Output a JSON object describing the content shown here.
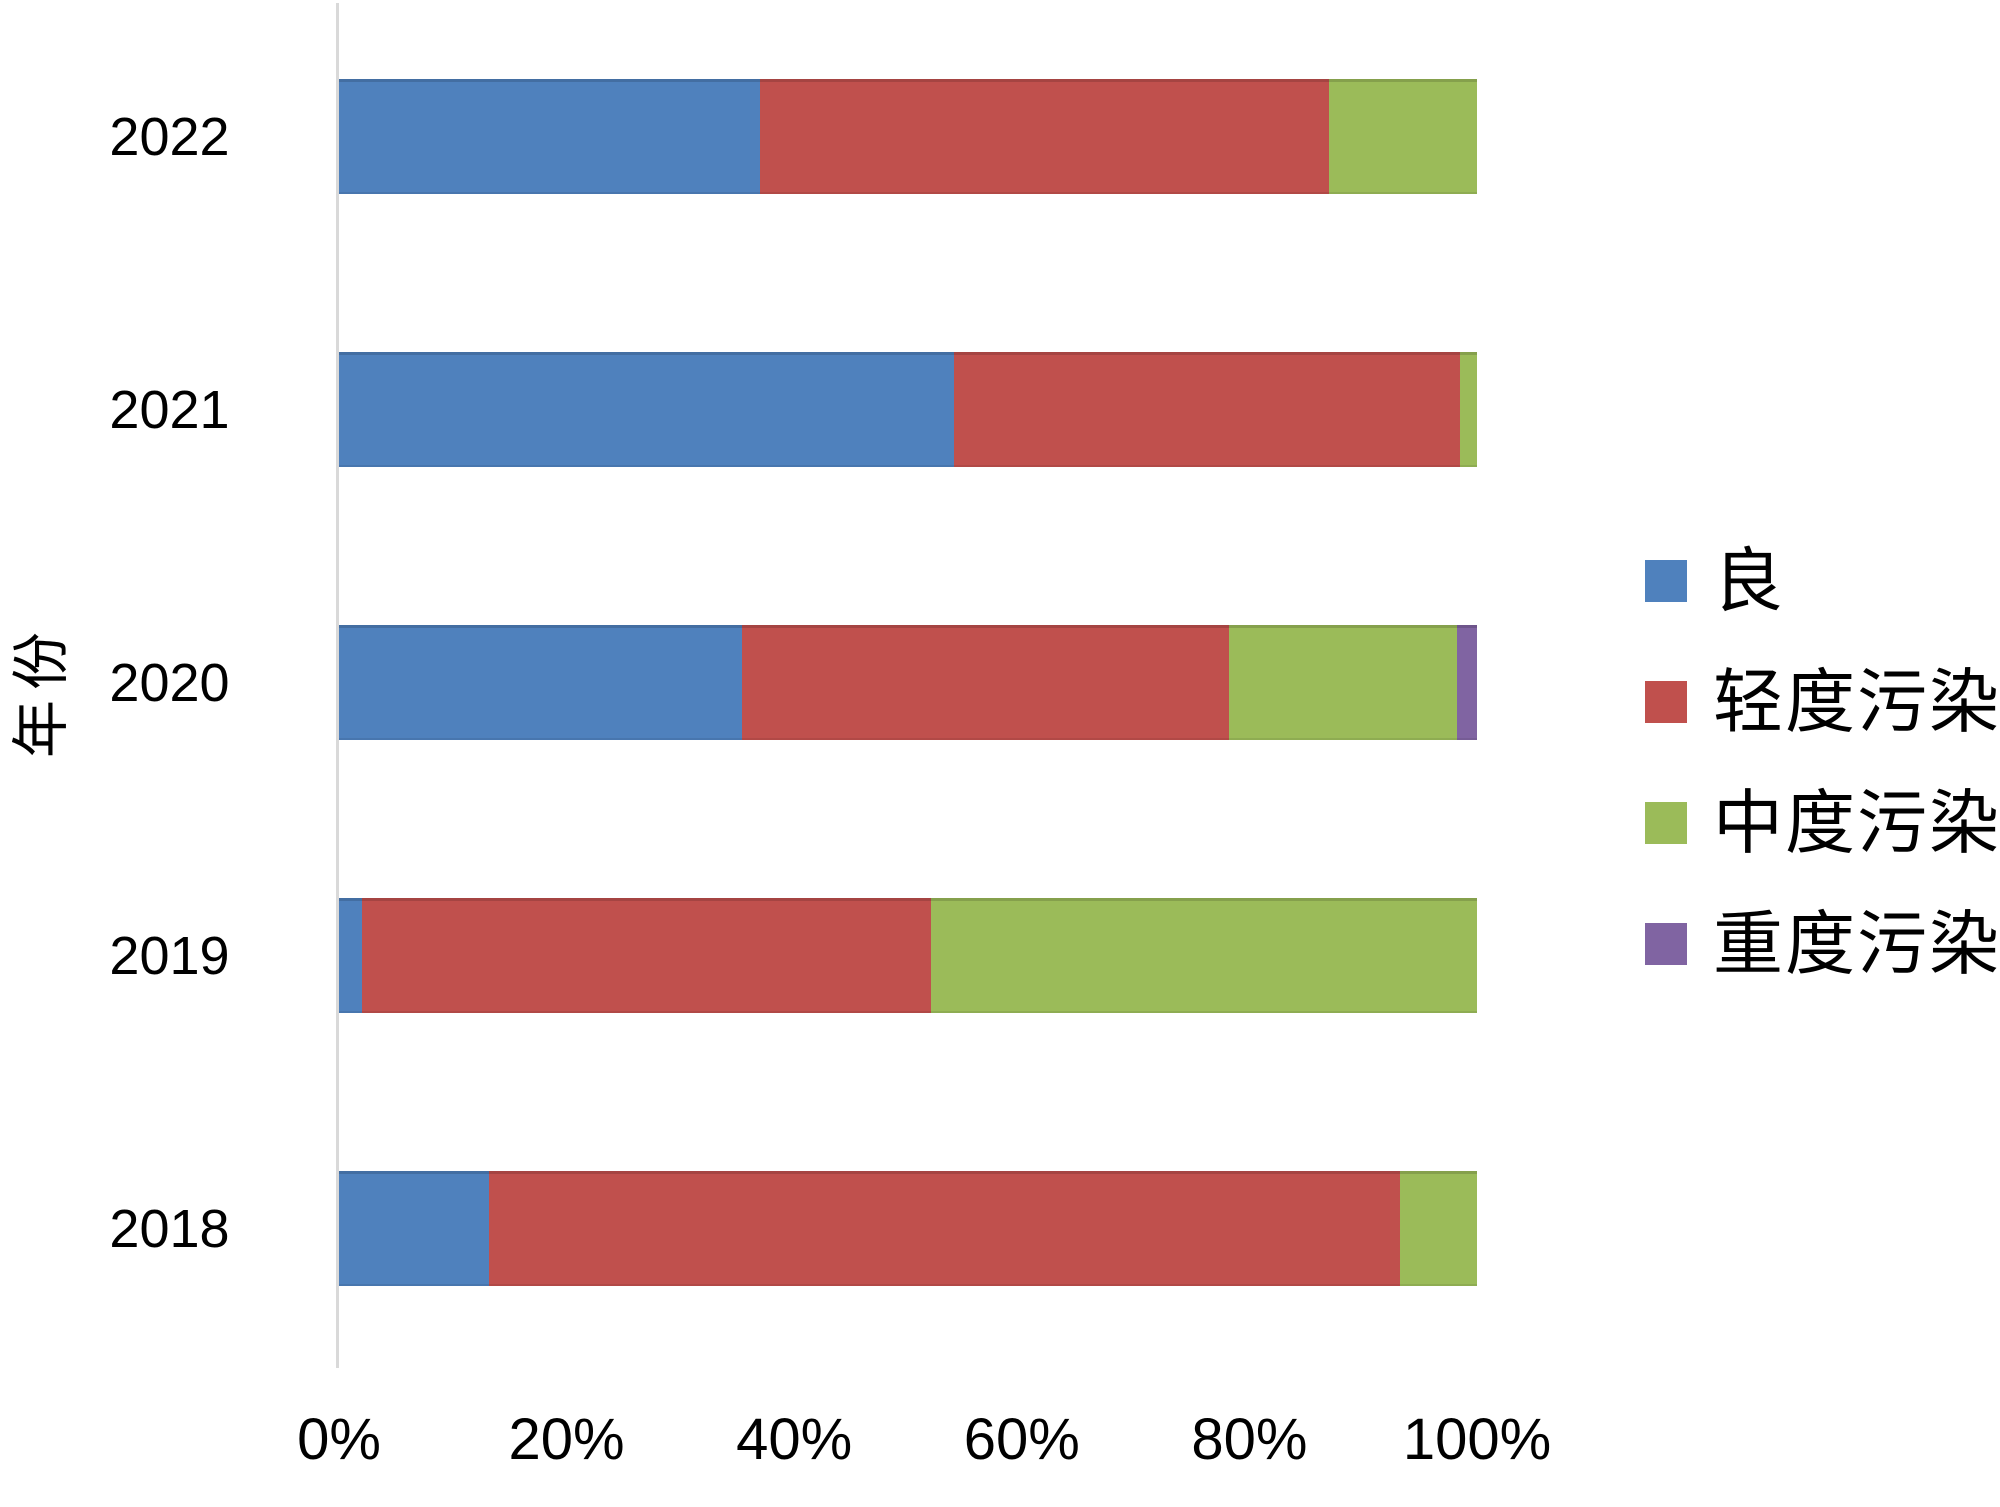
{
  "chart_data": {
    "type": "bar",
    "subtype": "horizontal-stacked-100-percent",
    "title": "",
    "xlabel": "",
    "ylabel": "年份",
    "xlim": [
      0,
      100
    ],
    "x_tick_labels": [
      "0%",
      "20%",
      "40%",
      "60%",
      "80%",
      "100%"
    ],
    "categories": [
      "2022",
      "2021",
      "2020",
      "2019",
      "2018"
    ],
    "series": [
      {
        "name": "良",
        "color": "#4F81BD",
        "values": [
          37,
          54,
          35.4,
          2,
          13.2
        ]
      },
      {
        "name": "轻度污染",
        "color": "#C0504D",
        "values": [
          50,
          44.5,
          42.8,
          50,
          80
        ]
      },
      {
        "name": "中度污染",
        "color": "#9BBB59",
        "values": [
          13,
          1.5,
          20,
          48,
          6.8
        ]
      },
      {
        "name": "重度污染",
        "color": "#8064A2",
        "values": [
          0,
          0,
          1.8,
          0,
          0
        ]
      }
    ],
    "legend_position": "right",
    "grid": false,
    "axis_line_color": "#D9D9D9",
    "text_color": "#000000"
  }
}
